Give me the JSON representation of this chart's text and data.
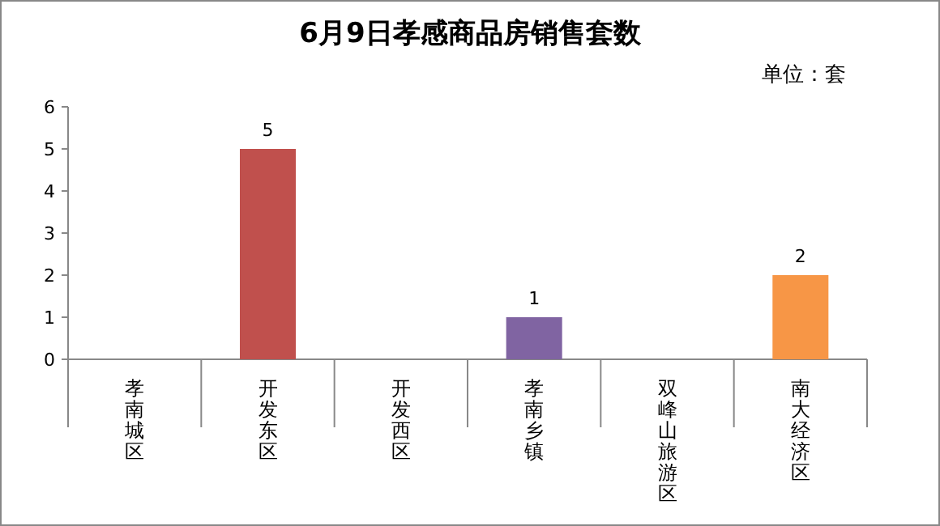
{
  "chart_data": {
    "type": "bar",
    "title": "6月9日孝感商品房销售套数",
    "annotations": [
      "单位：套"
    ],
    "categories": [
      "孝南城区",
      "开发东区",
      "开发西区",
      "孝南乡镇",
      "双峰山旅游区",
      "南大经济区"
    ],
    "values": [
      0,
      5,
      0,
      1,
      0,
      2
    ],
    "colors": [
      "#4f81bd",
      "#c0504d",
      "#9bbb59",
      "#8064a2",
      "#4bacc6",
      "#f79646"
    ],
    "value_labels": [
      null,
      "5",
      null,
      "1",
      null,
      "2"
    ],
    "ylim": [
      0,
      6
    ],
    "yticks": [
      0,
      1,
      2,
      3,
      4,
      5,
      6
    ],
    "grid": false
  }
}
